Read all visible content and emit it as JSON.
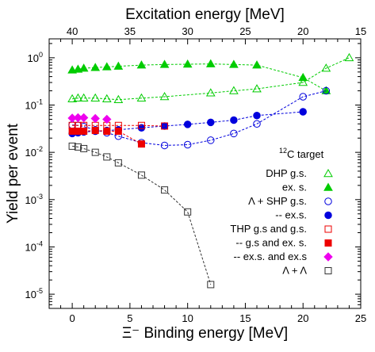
{
  "chart_data": {
    "type": "scatter",
    "xlabel_bottom": "Ξ⁻ Binding energy [MeV]",
    "xlabel_top": "Excitation energy [MeV]",
    "ylabel": "Yield per event",
    "xlim": [
      -2,
      25
    ],
    "ylim_log10": [
      -5.3,
      0.4
    ],
    "y_scale": "log",
    "x_ticks": [
      0,
      5,
      10,
      15,
      20,
      25
    ],
    "top_ticks": [
      40,
      35,
      30,
      25,
      20,
      15
    ],
    "top_axis_relation": "excitation = 40 - binding",
    "y_ticks": [
      {
        "value": 1,
        "mantissa": "10",
        "exponent": "0"
      },
      {
        "value": 0.1,
        "mantissa": "10",
        "exponent": "-1"
      },
      {
        "value": 0.01,
        "mantissa": "10",
        "exponent": "-2"
      },
      {
        "value": 0.001,
        "mantissa": "10",
        "exponent": "-3"
      },
      {
        "value": 0.0001,
        "mantissa": "10",
        "exponent": "-4"
      },
      {
        "value": 1e-05,
        "mantissa": "10",
        "exponent": "-5"
      }
    ],
    "legend_title": {
      "sup": "12",
      "text": "C  target"
    },
    "legend_position": "right",
    "series": [
      {
        "name": "DHP g.s.",
        "color": "#00cc00",
        "marker": "triangle-open",
        "line": true,
        "x": [
          0,
          0.5,
          1,
          2,
          3,
          4,
          6,
          8,
          12,
          14,
          16,
          20,
          22,
          24
        ],
        "y": [
          0.135,
          0.14,
          0.14,
          0.14,
          0.135,
          0.13,
          0.14,
          0.15,
          0.18,
          0.2,
          0.22,
          0.3,
          0.6,
          1.0
        ]
      },
      {
        "name": "ex. s.",
        "color": "#00cc00",
        "marker": "triangle-filled",
        "line": true,
        "x": [
          0,
          0.5,
          1,
          2,
          3,
          4,
          6,
          8,
          10,
          12,
          14,
          16,
          20,
          22
        ],
        "y": [
          0.55,
          0.57,
          0.6,
          0.62,
          0.64,
          0.66,
          0.7,
          0.72,
          0.73,
          0.74,
          0.72,
          0.7,
          0.38,
          0.2
        ]
      },
      {
        "name": "Λ + SHP g.s.",
        "color": "#0000dd",
        "marker": "circle-open",
        "line": true,
        "x": [
          0,
          0.5,
          1,
          2,
          3,
          4,
          6,
          8,
          10,
          12,
          14,
          16,
          20,
          22
        ],
        "y": [
          0.038,
          0.037,
          0.035,
          0.03,
          0.026,
          0.022,
          0.016,
          0.014,
          0.0145,
          0.018,
          0.025,
          0.04,
          0.15,
          0.2
        ]
      },
      {
        "name": "-- ex.s.",
        "color": "#0000dd",
        "marker": "circle-filled",
        "line": true,
        "x": [
          0,
          0.5,
          1,
          2,
          3,
          4,
          6,
          8,
          10,
          12,
          14,
          16,
          20
        ],
        "y": [
          0.025,
          0.026,
          0.027,
          0.028,
          0.029,
          0.03,
          0.033,
          0.036,
          0.039,
          0.043,
          0.048,
          0.06,
          0.072
        ]
      },
      {
        "name": "THP g.s and g.s.",
        "color": "#ee0000",
        "marker": "square-open",
        "line": true,
        "x": [
          0,
          0.5,
          1,
          2,
          3,
          4,
          6,
          8
        ],
        "y": [
          0.037,
          0.037,
          0.037,
          0.037,
          0.037,
          0.037,
          0.037,
          0.036
        ]
      },
      {
        "name": "-- g.s and ex. s.",
        "color": "#ee0000",
        "marker": "square-filled",
        "line": true,
        "x": [
          0,
          0.5,
          1,
          2,
          3,
          4,
          6
        ],
        "y": [
          0.028,
          0.028,
          0.028,
          0.029,
          0.028,
          0.028,
          0.015
        ]
      },
      {
        "name": "-- ex.s. and ex.s",
        "color": "#ee00ee",
        "marker": "diamond-filled",
        "line": false,
        "x": [
          0,
          0.5,
          1,
          2,
          3
        ],
        "y": [
          0.053,
          0.054,
          0.054,
          0.052,
          0.05
        ]
      },
      {
        "name": "Λ + Λ",
        "color": "#333333",
        "marker": "square-open",
        "line": true,
        "x": [
          0,
          0.5,
          1,
          2,
          3,
          4,
          6,
          8,
          10,
          12
        ],
        "y": [
          0.0135,
          0.013,
          0.012,
          0.01,
          0.008,
          0.006,
          0.0033,
          0.0016,
          0.00055,
          1.6e-05
        ]
      }
    ]
  }
}
